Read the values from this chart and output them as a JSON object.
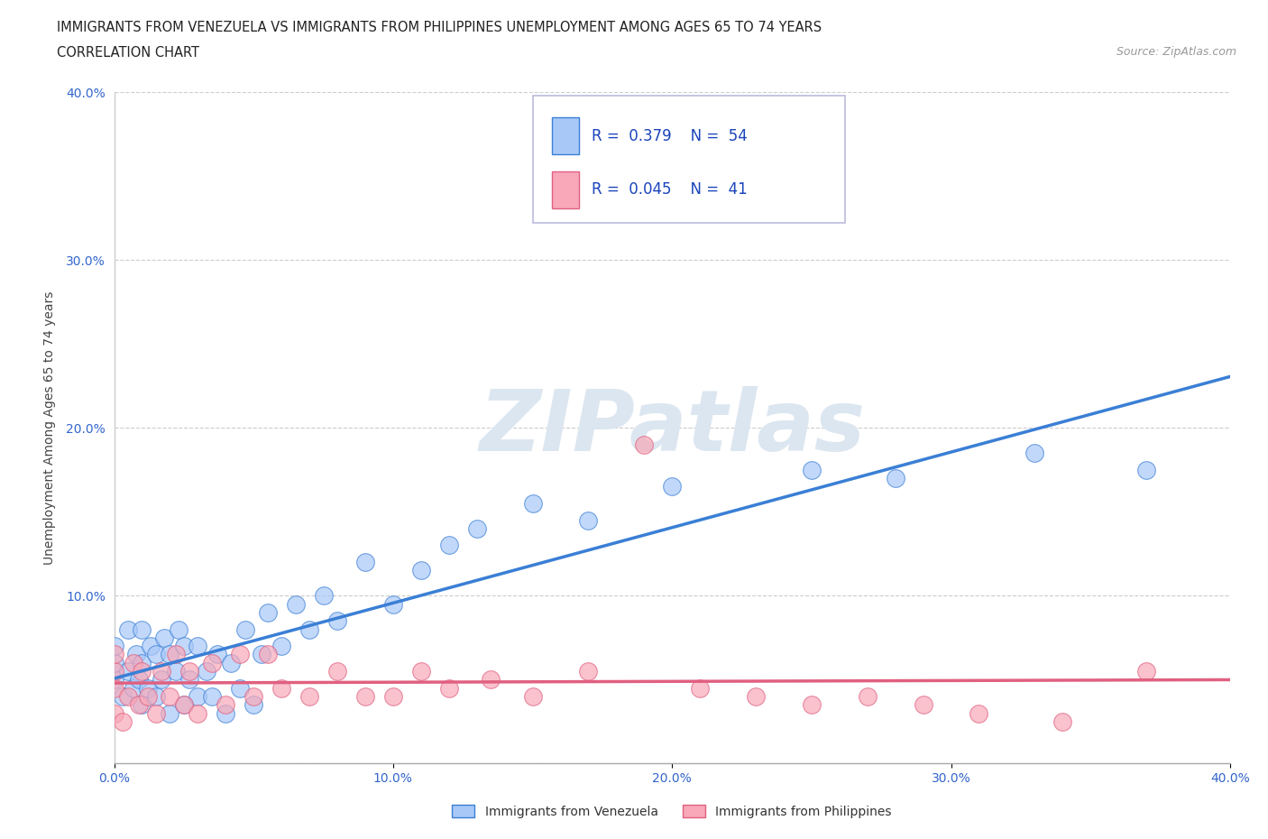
{
  "title_line1": "IMMIGRANTS FROM VENEZUELA VS IMMIGRANTS FROM PHILIPPINES UNEMPLOYMENT AMONG AGES 65 TO 74 YEARS",
  "title_line2": "CORRELATION CHART",
  "source_text": "Source: ZipAtlas.com",
  "ylabel": "Unemployment Among Ages 65 to 74 years",
  "xlim": [
    0.0,
    0.4
  ],
  "ylim": [
    0.0,
    0.4
  ],
  "xticks": [
    0.0,
    0.1,
    0.2,
    0.3,
    0.4
  ],
  "yticks": [
    0.0,
    0.1,
    0.2,
    0.3,
    0.4
  ],
  "xticklabels": [
    "0.0%",
    "10.0%",
    "20.0%",
    "30.0%",
    "40.0%"
  ],
  "yticklabels": [
    "",
    "10.0%",
    "20.0%",
    "30.0%",
    "40.0%"
  ],
  "R_venezuela": 0.379,
  "N_venezuela": 54,
  "R_philippines": 0.045,
  "N_philippines": 41,
  "color_venezuela": "#a8c8f8",
  "color_philippines": "#f8a8b8",
  "line_color_venezuela": "#3a7fd5",
  "line_color_philippines": "#e06080",
  "watermark_text": "ZIPatlas",
  "watermark_color": "#dce6f0",
  "background_color": "#ffffff",
  "legend_label_venezuela": "Immigrants from Venezuela",
  "legend_label_philippines": "Immigrants from Philippines",
  "venezuela_x": [
    0.0,
    0.0,
    0.0,
    0.003,
    0.005,
    0.005,
    0.007,
    0.008,
    0.009,
    0.01,
    0.01,
    0.01,
    0.012,
    0.013,
    0.015,
    0.015,
    0.017,
    0.018,
    0.02,
    0.02,
    0.022,
    0.023,
    0.025,
    0.025,
    0.027,
    0.03,
    0.03,
    0.033,
    0.035,
    0.037,
    0.04,
    0.042,
    0.045,
    0.047,
    0.05,
    0.053,
    0.055,
    0.06,
    0.065,
    0.07,
    0.075,
    0.08,
    0.09,
    0.1,
    0.11,
    0.12,
    0.13,
    0.15,
    0.17,
    0.2,
    0.25,
    0.28,
    0.33,
    0.37
  ],
  "venezuela_y": [
    0.05,
    0.06,
    0.07,
    0.04,
    0.055,
    0.08,
    0.045,
    0.065,
    0.05,
    0.035,
    0.06,
    0.08,
    0.045,
    0.07,
    0.04,
    0.065,
    0.05,
    0.075,
    0.03,
    0.065,
    0.055,
    0.08,
    0.035,
    0.07,
    0.05,
    0.04,
    0.07,
    0.055,
    0.04,
    0.065,
    0.03,
    0.06,
    0.045,
    0.08,
    0.035,
    0.065,
    0.09,
    0.07,
    0.095,
    0.08,
    0.1,
    0.085,
    0.12,
    0.095,
    0.115,
    0.13,
    0.14,
    0.155,
    0.145,
    0.165,
    0.175,
    0.17,
    0.185,
    0.175
  ],
  "philippines_x": [
    0.0,
    0.0,
    0.0,
    0.0,
    0.003,
    0.005,
    0.007,
    0.009,
    0.01,
    0.012,
    0.015,
    0.017,
    0.02,
    0.022,
    0.025,
    0.027,
    0.03,
    0.035,
    0.04,
    0.045,
    0.05,
    0.055,
    0.06,
    0.07,
    0.08,
    0.09,
    0.1,
    0.11,
    0.12,
    0.135,
    0.15,
    0.17,
    0.19,
    0.21,
    0.23,
    0.25,
    0.27,
    0.29,
    0.31,
    0.34,
    0.37
  ],
  "philippines_y": [
    0.03,
    0.045,
    0.055,
    0.065,
    0.025,
    0.04,
    0.06,
    0.035,
    0.055,
    0.04,
    0.03,
    0.055,
    0.04,
    0.065,
    0.035,
    0.055,
    0.03,
    0.06,
    0.035,
    0.065,
    0.04,
    0.065,
    0.045,
    0.04,
    0.055,
    0.04,
    0.04,
    0.055,
    0.045,
    0.05,
    0.04,
    0.055,
    0.19,
    0.045,
    0.04,
    0.035,
    0.04,
    0.035,
    0.03,
    0.025,
    0.055
  ]
}
